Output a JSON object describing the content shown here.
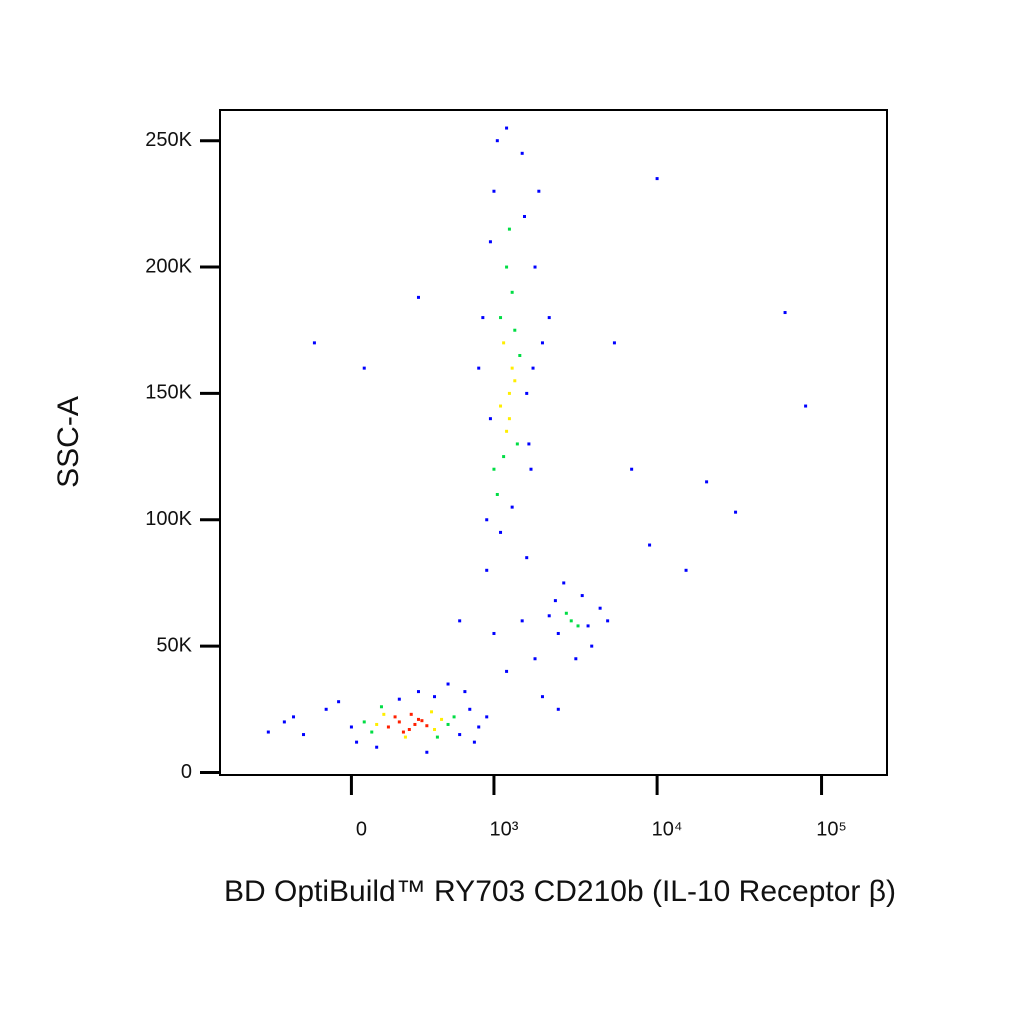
{
  "chart_data": {
    "type": "scatter",
    "x_label": "BD OptiBuild™ RY703 CD210b (IL-10 Receptor β)",
    "y_label": "SSC-A",
    "xscale": "biexponential",
    "xlim": [
      -850,
      250000
    ],
    "xticks": [
      0,
      {
        "value": 1000,
        "label": "10³"
      },
      {
        "value": 10000,
        "label": "10⁴"
      },
      {
        "value": 100000,
        "label": "10⁵"
      }
    ],
    "ylim": [
      -1000,
      262144
    ],
    "yticks": [
      0,
      {
        "value": 50000,
        "label": "50K"
      },
      {
        "value": 100000,
        "label": "100K"
      },
      {
        "value": 150000,
        "label": "150K"
      },
      {
        "value": 200000,
        "label": "200K"
      },
      {
        "value": 250000,
        "label": "250K"
      }
    ],
    "series": [
      {
        "color": "#0000ff",
        "x": [
          -300,
          -200,
          -100,
          0,
          20,
          -50,
          600,
          700,
          800,
          900,
          400,
          300,
          200,
          100,
          -400,
          -250,
          650,
          750,
          500,
          350,
          900,
          950,
          1600,
          1700,
          1800,
          2000,
          850,
          1000,
          1500,
          1900,
          1100,
          1300,
          1200,
          1650,
          950,
          1750,
          1050,
          1550,
          800,
          2200,
          2500,
          3500,
          4000,
          4500,
          2200,
          2700,
          3800,
          5000,
          3200,
          2400,
          1200,
          1500,
          1800,
          2000,
          1000,
          900,
          1600,
          2500,
          10000,
          20000,
          30000,
          60000,
          80000,
          15000,
          9000,
          5500,
          7000,
          -150,
          50,
          300,
          600
        ],
        "y": [
          20000,
          15000,
          25000,
          18000,
          12000,
          28000,
          15000,
          25000,
          18000,
          22000,
          30000,
          32000,
          29000,
          10000,
          16000,
          22000,
          32000,
          12000,
          35000,
          8000,
          100000,
          140000,
          150000,
          120000,
          200000,
          170000,
          180000,
          230000,
          245000,
          230000,
          95000,
          105000,
          255000,
          130000,
          210000,
          160000,
          250000,
          220000,
          160000,
          180000,
          55000,
          70000,
          50000,
          65000,
          62000,
          75000,
          58000,
          60000,
          45000,
          68000,
          40000,
          60000,
          45000,
          30000,
          55000,
          80000,
          85000,
          25000,
          235000,
          115000,
          103000,
          182000,
          145000,
          80000,
          90000,
          170000,
          120000,
          170000,
          160000,
          188000,
          60000
        ]
      },
      {
        "color": "#00dd44",
        "x": [
          50,
          80,
          500,
          550,
          120,
          420,
          1000,
          1400,
          1100,
          1300,
          1200,
          1450,
          1050,
          1250,
          1150,
          1350,
          3000,
          2800,
          3300
        ],
        "y": [
          20000,
          16000,
          19000,
          22000,
          26000,
          14000,
          120000,
          130000,
          180000,
          190000,
          200000,
          165000,
          110000,
          215000,
          125000,
          175000,
          60000,
          63000,
          58000
        ]
      },
      {
        "color": "#ffee00",
        "x": [
          100,
          400,
          450,
          130,
          380,
          230,
          1100,
          1250,
          1300,
          1150,
          1200,
          1350,
          1250
        ],
        "y": [
          19000,
          17000,
          21000,
          23000,
          24000,
          14000,
          145000,
          150000,
          160000,
          170000,
          135000,
          155000,
          140000
        ]
      },
      {
        "color": "#ff2000",
        "x": [
          150,
          200,
          250,
          300,
          180,
          280,
          350,
          220,
          320,
          260
        ],
        "y": [
          18000,
          20000,
          17000,
          21000,
          22000,
          19000,
          18500,
          16000,
          20500,
          23000
        ]
      }
    ]
  }
}
